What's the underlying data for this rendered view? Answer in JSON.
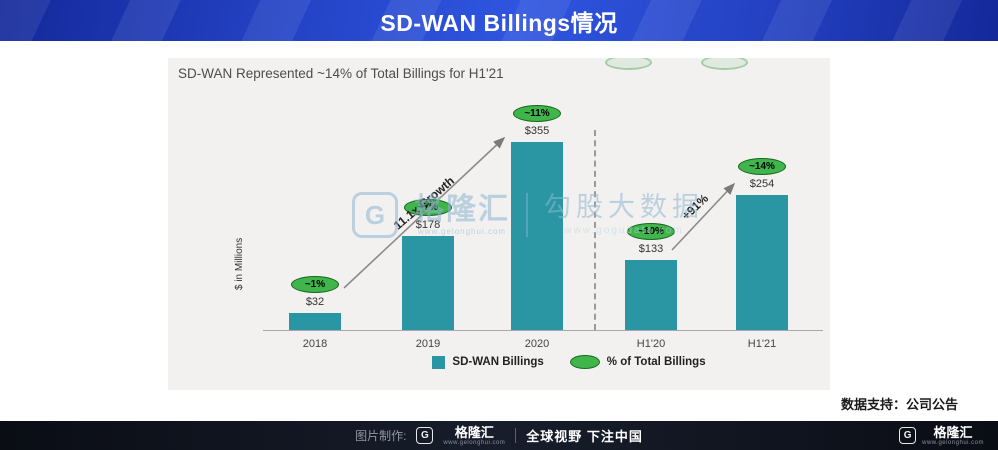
{
  "header": {
    "title": "SD-WAN Billings情况"
  },
  "chart_data": {
    "type": "bar",
    "title": "SD-WAN Represented ~14% of Total Billings for H1'21",
    "ylabel": "$ in Millions",
    "categories": [
      "2018",
      "2019",
      "2020",
      "H1'20",
      "H1'21"
    ],
    "series": [
      {
        "name": "SD-WAN Billings",
        "values": [
          32,
          178,
          355,
          133,
          254
        ],
        "labels": [
          "$32",
          "$178",
          "$355",
          "$133",
          "$254"
        ]
      },
      {
        "name": "% of Total Billings",
        "labels": [
          "~1%",
          "~7%",
          "~11%",
          "~10%",
          "~14%"
        ]
      }
    ],
    "ylim": [
      0,
      400
    ],
    "grid": false,
    "legend_position": "bottom",
    "divider_after": "2020",
    "annotations": [
      {
        "text": "11.1x Growth",
        "from": "2018",
        "to": "2020"
      },
      {
        "text": "+91%",
        "from": "H1'20",
        "to": "H1'21"
      }
    ],
    "colors": {
      "bar": "#2a96a3",
      "pct_badge": "#3fb54b"
    }
  },
  "source_note": "数据支持：公司公告",
  "watermark": {
    "logo_letter": "G",
    "brand": "格隆汇",
    "brand_url": "www.gelonghui.com",
    "site_name": "勾股大数据",
    "site_url": "www.gogudata.com"
  },
  "footer": {
    "credit_label": "图片制作:",
    "logo_letter": "G",
    "brand": "格隆汇",
    "brand_url": "www.gelonghui.com",
    "slogan": "全球视野 下注中国",
    "right": {
      "logo_letter": "G",
      "brand": "格隆汇",
      "url": "www.gelonghui.com"
    }
  }
}
